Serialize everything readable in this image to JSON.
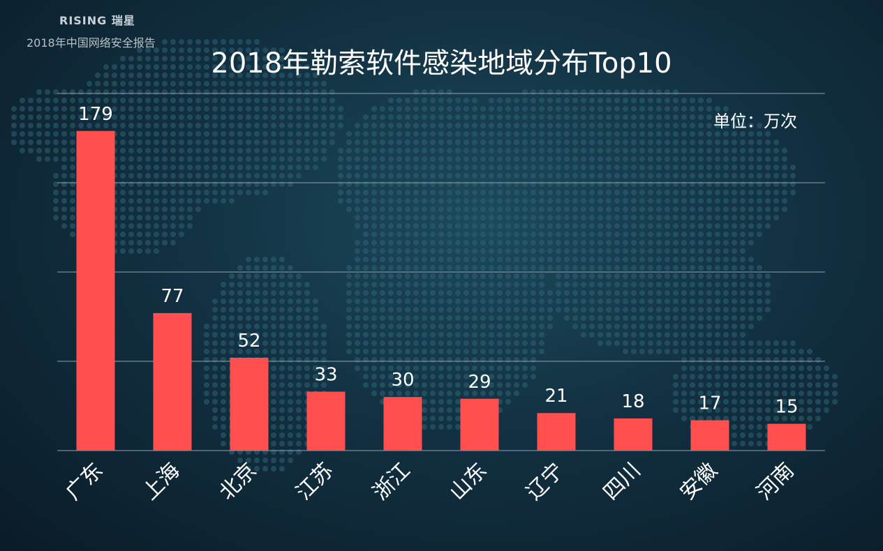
{
  "header": {
    "brand": "RISING 瑞星",
    "report_name": "2018年中国网络安全报告"
  },
  "colors": {
    "bar": "#ff4f4f",
    "grid": "#8fa3ad",
    "text": "#ffffff"
  },
  "chart_data": {
    "type": "bar",
    "title": "2018年勒索软件感染地域分布Top10",
    "unit": "单位：万次",
    "categories": [
      "广东",
      "上海",
      "北京",
      "江苏",
      "浙江",
      "山东",
      "辽宁",
      "四川",
      "安徽",
      "河南"
    ],
    "values": [
      179,
      77,
      52,
      33,
      30,
      29,
      21,
      18,
      17,
      15
    ],
    "data_labels": [
      "179",
      "77",
      "52",
      "33",
      "30",
      "29",
      "21",
      "18",
      "17",
      "15"
    ],
    "ylim": [
      0,
      200
    ],
    "grid": true,
    "gridlines": [
      0,
      50,
      100,
      150,
      200
    ],
    "xlabel": "",
    "ylabel": ""
  }
}
